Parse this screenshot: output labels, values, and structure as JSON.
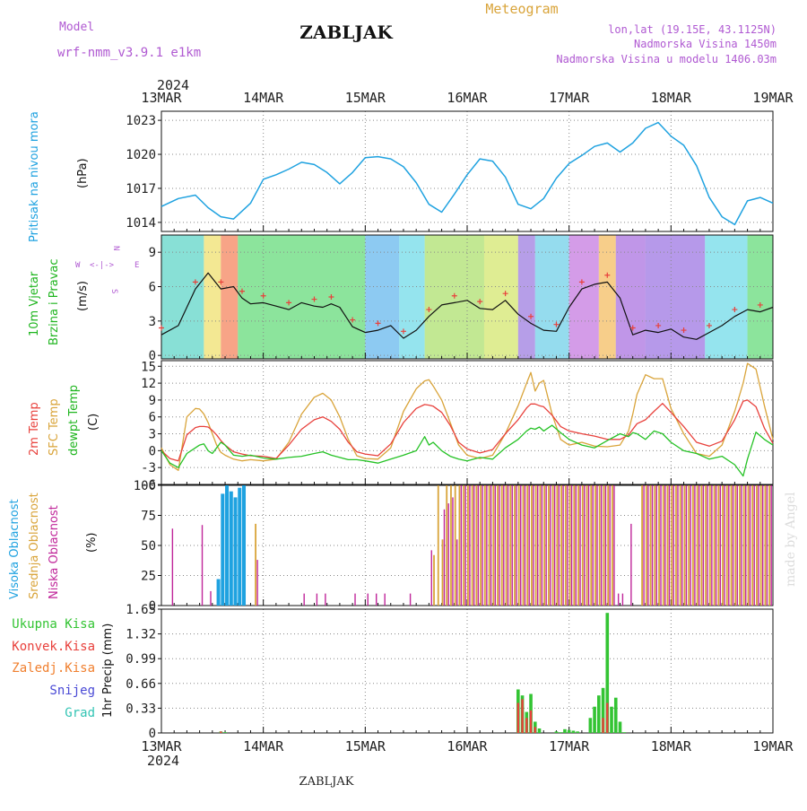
{
  "header": {
    "title": "ZABLJAK",
    "footer_title": "ZABLJAK",
    "model_label": "Model",
    "model_name": "wrf-nmm_v3.9.1 e1km",
    "product": "Meteogram",
    "coords": "lon,lat (19.15E, 43.1125N)",
    "elevation": "Nadmorska Visina 1450m",
    "model_elevation": "Nadmorska Visina u modelu 1406.03m",
    "credit": "made by Angel"
  },
  "time_axis": {
    "year": "2024",
    "days": [
      "13MAR",
      "14MAR",
      "15MAR",
      "16MAR",
      "17MAR",
      "18MAR",
      "19MAR"
    ],
    "hours_total": 144
  },
  "colors": {
    "pressure": "#1fa2e0",
    "wind": "#1fb51f",
    "t2m": "#e8413c",
    "tsfc": "#d9a43a",
    "dewpt": "#25c225",
    "cloud_high": "#1fa2e0",
    "cloud_mid": "#d9a43a",
    "cloud_low": "#c0269a",
    "precip_total": "#33c433",
    "precip_conv": "#e8413c",
    "precip_frz": "#f07f2e",
    "precip_snow": "#4a4ad6",
    "precip_grad": "#33c4b4"
  },
  "labels": {
    "pressure": "Pritisak na nivou mora",
    "pressure_unit": "(hPa)",
    "wind1": "10m Vjetar",
    "wind2": "Brzina i Pravac",
    "wind_unit": "(m/s)",
    "compass": {
      "n": "N",
      "s": "S",
      "e": "E",
      "w": "W",
      "arrows": "<-|->"
    },
    "temp1": "2m Temp",
    "temp2": "SFC Temp",
    "temp3": "dewpt Temp",
    "temp_unit": "(C)",
    "cloud1": "Visoka Oblacnost",
    "cloud2": "Srednja Oblacnost",
    "cloud3": "Niska Oblacnost",
    "cloud_unit": "(%)",
    "precip_unit": "1hr Precip (mm)",
    "precip_legend": [
      "Ukupna Kisa",
      "Konvek.Kisa",
      "Zaledj.Kisa",
      "Snijeg",
      "Grad"
    ]
  },
  "chart_data": [
    {
      "type": "line",
      "name": "pressure",
      "ylim": [
        1013.2,
        1023.8
      ],
      "yticks": [
        "1014",
        "1017",
        "1020",
        "1023"
      ],
      "x": [
        0,
        4,
        8,
        11,
        14,
        17,
        21,
        24,
        27,
        30,
        33,
        36,
        39,
        42,
        45,
        48,
        51,
        54,
        57,
        60,
        63,
        66,
        69,
        72,
        75,
        78,
        81,
        84,
        87,
        90,
        93,
        96,
        99,
        102,
        105,
        108,
        111,
        114,
        117,
        120,
        123,
        126,
        129,
        132,
        135,
        138,
        141,
        144
      ],
      "values": [
        1015.4,
        1016.1,
        1016.4,
        1015.3,
        1014.5,
        1014.3,
        1015.7,
        1017.8,
        1018.2,
        1018.7,
        1019.3,
        1019.1,
        1018.4,
        1017.4,
        1018.4,
        1019.7,
        1019.8,
        1019.6,
        1018.9,
        1017.5,
        1015.6,
        1014.9,
        1016.5,
        1018.2,
        1019.6,
        1019.4,
        1018.0,
        1015.6,
        1015.2,
        1016.1,
        1017.9,
        1019.2,
        1019.9,
        1020.7,
        1021.0,
        1020.2,
        1021.0,
        1022.3,
        1022.8,
        1021.6,
        1020.8,
        1019.0,
        1016.2,
        1014.5,
        1013.8,
        1015.9,
        1016.2,
        1015.7
      ]
    },
    {
      "type": "line",
      "name": "wind_speed",
      "ylim": [
        -0.3,
        10.5
      ],
      "yticks": [
        "0",
        "3",
        "6",
        "9"
      ],
      "x": [
        0,
        4,
        8,
        11,
        14,
        17,
        19,
        21,
        24,
        27,
        30,
        33,
        36,
        38,
        40,
        42,
        45,
        48,
        51,
        54,
        57,
        60,
        63,
        66,
        69,
        72,
        75,
        78,
        81,
        84,
        87,
        90,
        93,
        96,
        99,
        102,
        105,
        108,
        111,
        114,
        117,
        120,
        123,
        126,
        129,
        132,
        135,
        138,
        141,
        144
      ],
      "values": [
        1.8,
        2.6,
        5.8,
        7.2,
        5.8,
        6.0,
        5.0,
        4.5,
        4.6,
        4.3,
        4.0,
        4.6,
        4.3,
        4.2,
        4.5,
        4.2,
        2.5,
        2.0,
        2.2,
        2.6,
        1.5,
        2.2,
        3.4,
        4.4,
        4.6,
        4.8,
        4.1,
        4.0,
        4.8,
        3.6,
        2.8,
        2.2,
        2.1,
        4.2,
        5.8,
        6.2,
        6.4,
        5.0,
        1.8,
        2.2,
        2.0,
        2.3,
        1.6,
        1.4,
        2.0,
        2.6,
        3.4,
        4.0,
        3.8,
        4.2
      ]
    },
    {
      "type": "line",
      "name": "temperature",
      "ylim": [
        -6,
        16
      ],
      "yticks": [
        "-6",
        "-3",
        "0",
        "3",
        "6",
        "9",
        "12",
        "15"
      ],
      "x": [
        0,
        2,
        4,
        6,
        8,
        9,
        10,
        11,
        12,
        13,
        14,
        15,
        17,
        19,
        21,
        24,
        27,
        30,
        33,
        36,
        38,
        40,
        42,
        44,
        46,
        48,
        51,
        54,
        57,
        60,
        62,
        63,
        64,
        66,
        68,
        70,
        72,
        75,
        78,
        81,
        84,
        86,
        87,
        88,
        89,
        90,
        92,
        94,
        96,
        99,
        102,
        105,
        108,
        110,
        111,
        112,
        114,
        116,
        118,
        120,
        123,
        126,
        129,
        132,
        135,
        137,
        138,
        140,
        142,
        144
      ],
      "series": [
        {
          "name": "2m Temp",
          "values": [
            0.0,
            -1.4,
            -1.8,
            2.8,
            4.1,
            4.3,
            4.3,
            4.2,
            3.6,
            2.8,
            1.8,
            1.0,
            -0.2,
            -0.6,
            -0.9,
            -1.0,
            -1.4,
            1.0,
            3.8,
            5.5,
            6.0,
            5.2,
            3.8,
            1.5,
            -0.2,
            -0.6,
            -0.9,
            1.2,
            5.0,
            7.5,
            8.2,
            8.1,
            7.9,
            6.8,
            4.5,
            1.5,
            0.3,
            -0.4,
            0.2,
            3.0,
            5.5,
            7.6,
            8.3,
            8.3,
            8.0,
            7.8,
            6.3,
            4.3,
            3.5,
            3.0,
            2.6,
            2.0,
            2.0,
            2.8,
            3.8,
            4.8,
            5.5,
            7.0,
            8.4,
            6.8,
            4.3,
            1.5,
            0.8,
            1.7,
            5.5,
            8.8,
            9.0,
            7.8,
            4.0,
            1.3
          ]
        },
        {
          "name": "SFC Temp",
          "values": [
            0.5,
            -2.5,
            -3.5,
            6.0,
            7.5,
            7.4,
            6.5,
            5.0,
            3.0,
            1.0,
            -0.3,
            -0.8,
            -1.5,
            -1.8,
            -1.6,
            -1.8,
            -1.5,
            1.5,
            6.5,
            9.5,
            10.2,
            9.0,
            6.0,
            2.0,
            -0.9,
            -1.4,
            -1.5,
            0.5,
            7.0,
            11.0,
            12.4,
            12.6,
            11.5,
            9.0,
            5.0,
            1.0,
            -0.8,
            -1.4,
            -0.8,
            3.0,
            8.0,
            12.0,
            13.9,
            10.6,
            12.0,
            12.5,
            6.5,
            2.0,
            1.0,
            1.5,
            0.8,
            0.7,
            1.0,
            3.5,
            6.5,
            10.0,
            13.5,
            12.8,
            12.8,
            7.5,
            3.0,
            -0.5,
            -1.0,
            1.0,
            7.0,
            12.0,
            15.5,
            14.5,
            8.0,
            2.0
          ]
        },
        {
          "name": "dewpt Temp",
          "values": [
            0.0,
            -2.2,
            -3.0,
            -0.5,
            0.5,
            1.0,
            1.2,
            0.0,
            -0.5,
            0.5,
            1.5,
            1.0,
            -0.8,
            -1.0,
            -0.8,
            -1.3,
            -1.5,
            -1.2,
            -1.0,
            -0.5,
            -0.2,
            -0.8,
            -1.2,
            -1.6,
            -1.6,
            -1.8,
            -2.2,
            -1.5,
            -0.8,
            0.0,
            2.5,
            1.0,
            1.5,
            0.0,
            -1.0,
            -1.5,
            -1.8,
            -1.2,
            -1.5,
            0.5,
            2.0,
            3.5,
            4.0,
            3.8,
            4.2,
            3.5,
            4.5,
            3.2,
            2.0,
            1.0,
            0.5,
            1.8,
            3.0,
            2.5,
            3.2,
            3.0,
            2.0,
            3.5,
            3.0,
            1.5,
            0.0,
            -0.5,
            -1.5,
            -1.0,
            -2.5,
            -4.5,
            -1.5,
            3.3,
            2.0,
            1.0
          ]
        }
      ]
    },
    {
      "type": "bar",
      "name": "cloud_cover",
      "ylim": [
        0,
        100
      ],
      "yticks": [
        "0",
        "25",
        "50",
        "75",
        "100"
      ],
      "x_high": [
        13,
        14,
        15,
        16,
        17,
        18,
        19
      ],
      "values_high": [
        22,
        93,
        100,
        95,
        90,
        98,
        100
      ],
      "x_mid": [
        22,
        64,
        65,
        66,
        67,
        68,
        69,
        70,
        71,
        72,
        73,
        74,
        75,
        76,
        77,
        78,
        79,
        80,
        81,
        82,
        83,
        84,
        85,
        86,
        87,
        88,
        89,
        90,
        91,
        92,
        93,
        94,
        95,
        96,
        97,
        98,
        99,
        100,
        101,
        102,
        103,
        104,
        105,
        106,
        113,
        114,
        115,
        116,
        117,
        118,
        119,
        120,
        121,
        122,
        123,
        124,
        125,
        126,
        127,
        128,
        129,
        130,
        131,
        132,
        133,
        134,
        135,
        136,
        137,
        138,
        139,
        140,
        141,
        142,
        143
      ],
      "values_mid": [
        68,
        42,
        100,
        55,
        100,
        100,
        100,
        100,
        100,
        100,
        100,
        100,
        100,
        100,
        100,
        100,
        100,
        100,
        100,
        100,
        100,
        100,
        100,
        100,
        100,
        100,
        100,
        100,
        100,
        100,
        100,
        100,
        100,
        100,
        100,
        100,
        100,
        100,
        100,
        100,
        100,
        100,
        100,
        100,
        100,
        100,
        100,
        100,
        100,
        100,
        100,
        100,
        100,
        100,
        100,
        100,
        100,
        100,
        100,
        100,
        100,
        100,
        100,
        100,
        100,
        100,
        100,
        100,
        100,
        100,
        100,
        100,
        100,
        100,
        100
      ],
      "x_low": [
        2,
        9,
        11,
        22,
        33,
        36,
        38,
        45,
        48,
        50,
        52,
        58,
        63,
        66,
        67,
        68,
        69,
        70,
        71,
        72,
        73,
        74,
        75,
        76,
        77,
        78,
        79,
        80,
        81,
        82,
        83,
        84,
        85,
        86,
        87,
        88,
        89,
        90,
        91,
        92,
        93,
        94,
        95,
        96,
        97,
        98,
        99,
        100,
        101,
        102,
        103,
        104,
        105,
        106,
        107,
        108,
        110,
        113,
        114,
        115,
        116,
        117,
        118,
        119,
        120,
        121,
        122,
        123,
        124,
        125,
        126,
        127,
        128,
        129,
        130,
        131,
        132,
        133,
        134,
        135,
        136,
        137,
        138,
        139,
        140,
        141,
        142,
        143
      ],
      "values_low": [
        64,
        67,
        12,
        38,
        10,
        10,
        10,
        10,
        10,
        10,
        10,
        10,
        46,
        80,
        85,
        90,
        55,
        100,
        100,
        100,
        100,
        100,
        100,
        100,
        100,
        100,
        100,
        100,
        100,
        100,
        100,
        100,
        100,
        100,
        100,
        100,
        100,
        100,
        100,
        100,
        100,
        100,
        100,
        100,
        100,
        100,
        100,
        100,
        100,
        100,
        100,
        100,
        100,
        100,
        10,
        10,
        68,
        100,
        100,
        100,
        100,
        100,
        100,
        100,
        100,
        100,
        100,
        100,
        100,
        100,
        100,
        100,
        100,
        100,
        100,
        100,
        100,
        100,
        100,
        100,
        100,
        100,
        100,
        100,
        100,
        100,
        100,
        100
      ]
    },
    {
      "type": "bar",
      "name": "precip_1hr",
      "ylim": [
        0,
        1.65
      ],
      "yticks": [
        "0",
        "0.33",
        "0.66",
        "0.99",
        "1.32",
        "1.65"
      ],
      "x": [
        14,
        15,
        84,
        85,
        86,
        87,
        88,
        89,
        93,
        94,
        95,
        96,
        97,
        98,
        101,
        102,
        103,
        104,
        105,
        106,
        107,
        108,
        109
      ],
      "values": [
        0.02,
        0.01,
        0.58,
        0.5,
        0.28,
        0.52,
        0.15,
        0.06,
        0.02,
        0.01,
        0.05,
        0.04,
        0.03,
        0.02,
        0.2,
        0.35,
        0.5,
        0.6,
        1.6,
        0.35,
        0.47,
        0.15,
        0.01
      ],
      "conv_x": [
        14,
        84,
        85,
        86,
        87,
        88,
        104,
        105
      ],
      "conv_values": [
        0.02,
        0.4,
        0.45,
        0.2,
        0.3,
        0.08,
        0.2,
        0.4
      ]
    }
  ]
}
